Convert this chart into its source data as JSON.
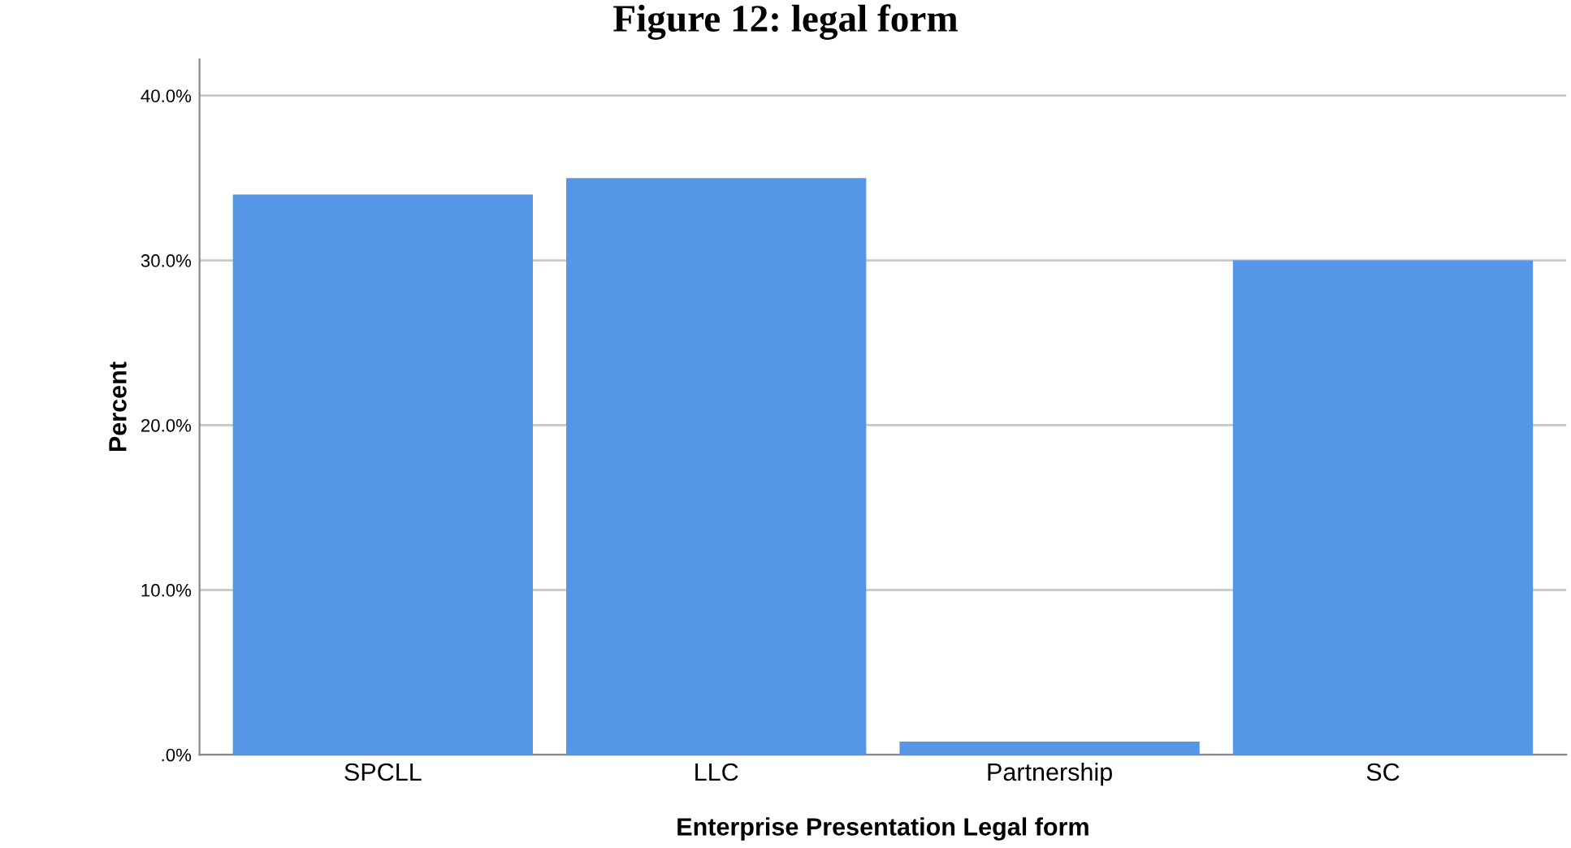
{
  "chart_data": {
    "type": "bar",
    "title": "Figure 12: legal form",
    "categories": [
      "SPCLL",
      "LLC",
      "Partnership",
      "SC"
    ],
    "values": [
      34.0,
      35.0,
      0.8,
      30.0
    ],
    "color": "#5596e6",
    "xlabel": "Enterprise Presentation Legal form",
    "ylabel": "Percent",
    "ylim": [
      0,
      42.2
    ],
    "yticks": [
      {
        "value": 0,
        "label": ".0%"
      },
      {
        "value": 10,
        "label": "10.0%"
      },
      {
        "value": 20,
        "label": "20.0%"
      },
      {
        "value": 30,
        "label": "30.0%"
      },
      {
        "value": 40,
        "label": "40.0%"
      }
    ],
    "grid": "y"
  }
}
